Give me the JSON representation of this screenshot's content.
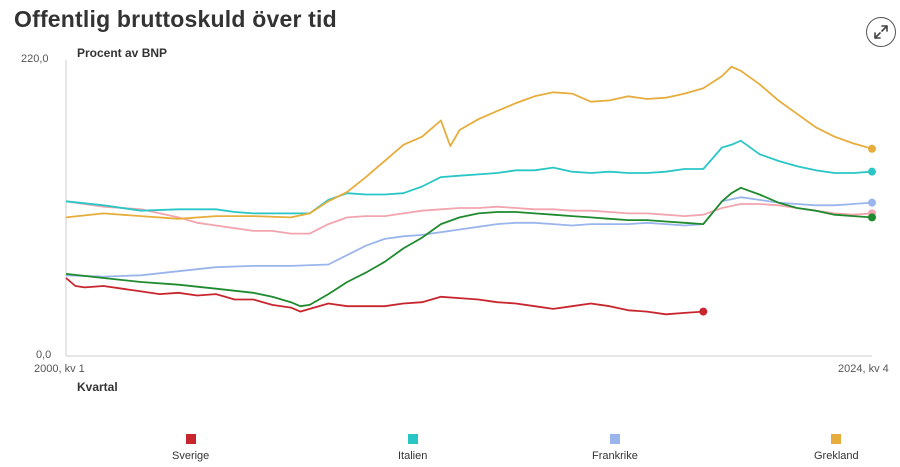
{
  "title": "Offentlig bruttoskuld över tid",
  "chart_data": {
    "type": "line",
    "ylabel": "Procent av BNP",
    "xlabel": "Kvartal",
    "ylim": [
      0,
      220
    ],
    "yticks": [
      "220,0",
      "0,0"
    ],
    "xticks": [
      "2000, kv 1",
      "2024, kv 4"
    ],
    "x_start": "2000 kv 1",
    "x_end": "2024 kv 4",
    "num_quarters": 100,
    "legend_position": "bottom",
    "grid": false,
    "series": [
      {
        "name": "Sverige",
        "color": "#c8262e",
        "points": [
          [
            0,
            58
          ],
          [
            2,
            52
          ],
          [
            4,
            51
          ],
          [
            8,
            52
          ],
          [
            12,
            50
          ],
          [
            16,
            48
          ],
          [
            20,
            46
          ],
          [
            24,
            47
          ],
          [
            28,
            45
          ],
          [
            32,
            46
          ],
          [
            36,
            42
          ],
          [
            40,
            42
          ],
          [
            44,
            38
          ],
          [
            48,
            36
          ],
          [
            50,
            33
          ],
          [
            52,
            35
          ],
          [
            56,
            39
          ],
          [
            60,
            37
          ],
          [
            64,
            37
          ],
          [
            68,
            37
          ],
          [
            72,
            39
          ],
          [
            76,
            40
          ],
          [
            80,
            44
          ],
          [
            84,
            43
          ],
          [
            88,
            42
          ],
          [
            92,
            40
          ],
          [
            96,
            39
          ],
          [
            100,
            37
          ],
          [
            104,
            35
          ],
          [
            108,
            37
          ],
          [
            112,
            39
          ],
          [
            116,
            37
          ],
          [
            120,
            34
          ],
          [
            124,
            33
          ],
          [
            128,
            31
          ],
          [
            132,
            32
          ],
          [
            136,
            33
          ]
        ]
      },
      {
        "name": "Italien",
        "color": "#2ac6c6",
        "points": [
          [
            0,
            115
          ],
          [
            8,
            112
          ],
          [
            16,
            108
          ],
          [
            24,
            109
          ],
          [
            32,
            109
          ],
          [
            36,
            107
          ],
          [
            40,
            106
          ],
          [
            44,
            106
          ],
          [
            48,
            106
          ],
          [
            52,
            106
          ],
          [
            56,
            116
          ],
          [
            60,
            121
          ],
          [
            64,
            120
          ],
          [
            68,
            120
          ],
          [
            72,
            121
          ],
          [
            76,
            126
          ],
          [
            80,
            133
          ],
          [
            84,
            134
          ],
          [
            88,
            135
          ],
          [
            92,
            136
          ],
          [
            96,
            138
          ],
          [
            100,
            138
          ],
          [
            104,
            140
          ],
          [
            108,
            137
          ],
          [
            112,
            136
          ],
          [
            116,
            137
          ],
          [
            120,
            136
          ],
          [
            124,
            136
          ],
          [
            128,
            137
          ],
          [
            132,
            139
          ],
          [
            136,
            139
          ],
          [
            140,
            155
          ],
          [
            142,
            157
          ],
          [
            144,
            160
          ],
          [
            148,
            150
          ],
          [
            152,
            145
          ],
          [
            156,
            141
          ],
          [
            160,
            138
          ],
          [
            164,
            136
          ],
          [
            168,
            136
          ],
          [
            172,
            137
          ]
        ]
      },
      {
        "name": "Frankrike",
        "color": "#9ab5ec",
        "points": [
          [
            0,
            60
          ],
          [
            8,
            59
          ],
          [
            16,
            60
          ],
          [
            24,
            63
          ],
          [
            32,
            66
          ],
          [
            40,
            67
          ],
          [
            48,
            67
          ],
          [
            56,
            68
          ],
          [
            60,
            75
          ],
          [
            64,
            82
          ],
          [
            68,
            87
          ],
          [
            72,
            89
          ],
          [
            76,
            90
          ],
          [
            80,
            92
          ],
          [
            84,
            94
          ],
          [
            88,
            96
          ],
          [
            92,
            98
          ],
          [
            96,
            99
          ],
          [
            100,
            99
          ],
          [
            104,
            98
          ],
          [
            108,
            97
          ],
          [
            112,
            98
          ],
          [
            116,
            98
          ],
          [
            120,
            98
          ],
          [
            124,
            99
          ],
          [
            128,
            98
          ],
          [
            132,
            97
          ],
          [
            136,
            98
          ],
          [
            140,
            115
          ],
          [
            144,
            118
          ],
          [
            148,
            116
          ],
          [
            152,
            114
          ],
          [
            156,
            113
          ],
          [
            160,
            112
          ],
          [
            164,
            112
          ],
          [
            168,
            113
          ],
          [
            172,
            114
          ]
        ]
      },
      {
        "name": "Grekland",
        "color": "#e7ad3c",
        "points": [
          [
            0,
            103
          ],
          [
            8,
            106
          ],
          [
            16,
            104
          ],
          [
            24,
            102
          ],
          [
            32,
            104
          ],
          [
            40,
            104
          ],
          [
            48,
            103
          ],
          [
            52,
            106
          ],
          [
            56,
            115
          ],
          [
            60,
            122
          ],
          [
            64,
            133
          ],
          [
            68,
            145
          ],
          [
            72,
            157
          ],
          [
            76,
            163
          ],
          [
            80,
            175
          ],
          [
            82,
            156
          ],
          [
            84,
            168
          ],
          [
            88,
            176
          ],
          [
            92,
            182
          ],
          [
            96,
            188
          ],
          [
            100,
            193
          ],
          [
            104,
            196
          ],
          [
            108,
            195
          ],
          [
            112,
            189
          ],
          [
            116,
            190
          ],
          [
            120,
            193
          ],
          [
            124,
            191
          ],
          [
            128,
            192
          ],
          [
            132,
            195
          ],
          [
            136,
            199
          ],
          [
            140,
            208
          ],
          [
            142,
            215
          ],
          [
            144,
            212
          ],
          [
            148,
            202
          ],
          [
            152,
            190
          ],
          [
            156,
            180
          ],
          [
            160,
            170
          ],
          [
            164,
            163
          ],
          [
            168,
            158
          ],
          [
            172,
            154
          ]
        ]
      },
      {
        "name": "",
        "color": "#f2a5ae",
        "points": [
          [
            0,
            115
          ],
          [
            8,
            111
          ],
          [
            16,
            109
          ],
          [
            24,
            103
          ],
          [
            28,
            99
          ],
          [
            32,
            97
          ],
          [
            36,
            95
          ],
          [
            40,
            93
          ],
          [
            44,
            93
          ],
          [
            48,
            91
          ],
          [
            52,
            91
          ],
          [
            56,
            98
          ],
          [
            60,
            103
          ],
          [
            64,
            104
          ],
          [
            68,
            104
          ],
          [
            72,
            106
          ],
          [
            76,
            108
          ],
          [
            80,
            109
          ],
          [
            84,
            110
          ],
          [
            88,
            110
          ],
          [
            92,
            111
          ],
          [
            96,
            110
          ],
          [
            100,
            109
          ],
          [
            104,
            109
          ],
          [
            108,
            108
          ],
          [
            112,
            108
          ],
          [
            116,
            107
          ],
          [
            120,
            106
          ],
          [
            124,
            106
          ],
          [
            128,
            105
          ],
          [
            132,
            104
          ],
          [
            136,
            105
          ],
          [
            140,
            110
          ],
          [
            144,
            113
          ],
          [
            148,
            113
          ],
          [
            152,
            112
          ],
          [
            156,
            110
          ],
          [
            160,
            108
          ],
          [
            164,
            106
          ],
          [
            168,
            105
          ],
          [
            172,
            106
          ]
        ]
      },
      {
        "name": "",
        "color": "#1f8a2e",
        "points": [
          [
            0,
            61
          ],
          [
            8,
            58
          ],
          [
            16,
            55
          ],
          [
            24,
            53
          ],
          [
            32,
            50
          ],
          [
            40,
            47
          ],
          [
            44,
            44
          ],
          [
            48,
            40
          ],
          [
            50,
            37
          ],
          [
            52,
            38
          ],
          [
            56,
            46
          ],
          [
            60,
            55
          ],
          [
            64,
            62
          ],
          [
            68,
            70
          ],
          [
            72,
            80
          ],
          [
            76,
            88
          ],
          [
            80,
            98
          ],
          [
            84,
            103
          ],
          [
            88,
            106
          ],
          [
            92,
            107
          ],
          [
            96,
            107
          ],
          [
            100,
            106
          ],
          [
            104,
            105
          ],
          [
            108,
            104
          ],
          [
            112,
            103
          ],
          [
            116,
            102
          ],
          [
            120,
            101
          ],
          [
            124,
            101
          ],
          [
            128,
            100
          ],
          [
            132,
            99
          ],
          [
            136,
            98
          ],
          [
            140,
            115
          ],
          [
            142,
            121
          ],
          [
            144,
            125
          ],
          [
            148,
            120
          ],
          [
            152,
            114
          ],
          [
            156,
            110
          ],
          [
            160,
            108
          ],
          [
            164,
            105
          ],
          [
            168,
            104
          ],
          [
            172,
            103
          ]
        ]
      }
    ]
  },
  "legend": [
    {
      "label": "Sverige",
      "color": "#c8262e"
    },
    {
      "label": "Italien",
      "color": "#2ac6c6"
    },
    {
      "label": "Frankrike",
      "color": "#9ab5ec"
    },
    {
      "label": "Grekland",
      "color": "#e7ad3c"
    }
  ],
  "icons": {
    "expand": "expand-diagonal-icon"
  }
}
